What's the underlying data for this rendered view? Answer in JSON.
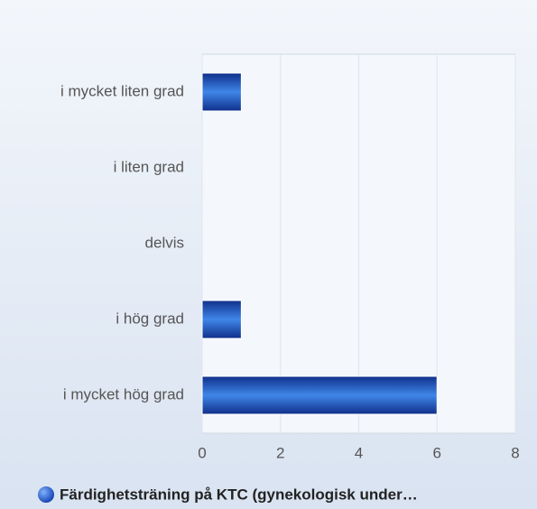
{
  "chart_data": {
    "type": "bar",
    "orientation": "horizontal",
    "categories": [
      "i mycket liten grad",
      "i liten grad",
      "delvis",
      "i hög grad",
      "i mycket hög grad"
    ],
    "series": [
      {
        "name": "Färdighetsträning på KTC (gynekologisk under…",
        "color": "#1f4fc0",
        "values": [
          1,
          0,
          0,
          1,
          6
        ]
      }
    ],
    "xlim": [
      0,
      8
    ],
    "xticks": [
      0,
      2,
      4,
      6,
      8
    ],
    "grid": true,
    "legend": "bottom"
  }
}
